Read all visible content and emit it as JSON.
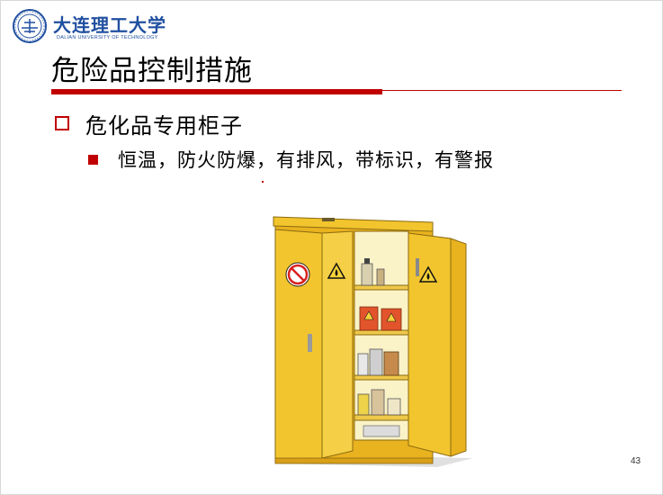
{
  "logo": {
    "name_cn": "大连理工大学",
    "name_en": "DALIAN UNIVERSITY OF TECHNOLOGY"
  },
  "slide": {
    "title": "危险品控制措施",
    "bullet_level1": "危化品专用柜子",
    "bullet_level2": "恒温，防火防爆，有排风，带标识，有警报",
    "page_number": "43"
  },
  "colors": {
    "accent": "#c00000",
    "logo_blue": "#1f4fa0",
    "cabinet_yellow": "#f2c52e"
  },
  "illustration": {
    "subject": "yellow-safety-cabinet",
    "icons": [
      "no-fire-sign-icon",
      "flammable-warning-icon"
    ]
  }
}
